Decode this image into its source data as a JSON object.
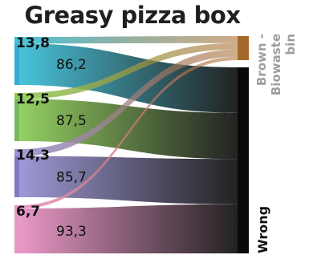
{
  "chart_data": {
    "type": "sankey",
    "title": "Greasy pizza box",
    "value_format": "decimal_comma",
    "sources": [
      {
        "color_top": "#3fc1d9",
        "color_bottom": "#3aa9d4",
        "flows": [
          13.8,
          86.2
        ]
      },
      {
        "color_top": "#8fce5a",
        "color_bottom": "#78b85e",
        "flows": [
          12.5,
          87.5
        ]
      },
      {
        "color_top": "#9a94d4",
        "color_bottom": "#7f79c4",
        "flows": [
          14.3,
          85.7
        ]
      },
      {
        "color_top": "#e993c4",
        "color_bottom": "#e39ac2",
        "flows": [
          6.7,
          93.3
        ]
      }
    ],
    "targets": [
      {
        "name": "Brown - Biowaste bin",
        "color": "#a6692c",
        "label_color": "#9e9e9e"
      },
      {
        "name": "Wrong",
        "color": "#0a0a0a",
        "label_color": "#111111"
      }
    ]
  }
}
